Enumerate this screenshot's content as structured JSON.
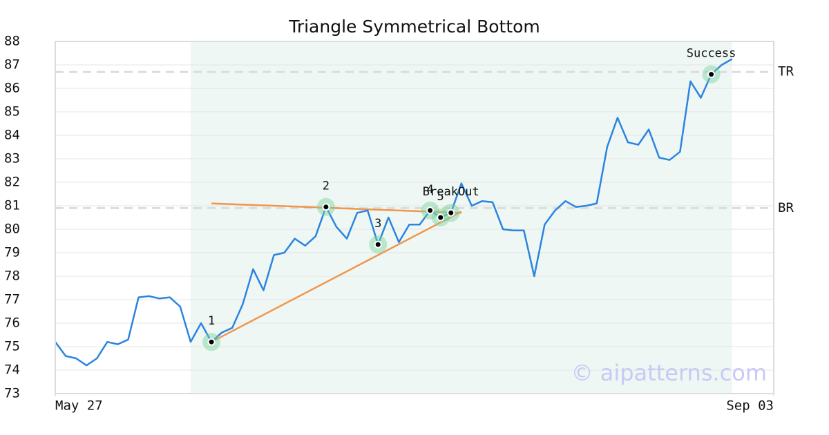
{
  "chart_data": {
    "type": "line",
    "title": "Triangle Symmetrical Bottom",
    "watermark": "© aipatterns.com",
    "x": [
      0,
      1,
      2,
      3,
      4,
      5,
      6,
      7,
      8,
      9,
      10,
      11,
      12,
      13,
      14,
      15,
      16,
      17,
      18,
      19,
      20,
      21,
      22,
      23,
      24,
      25,
      26,
      27,
      28,
      29,
      30,
      31,
      32,
      33,
      34,
      35,
      36,
      37,
      38,
      39,
      40,
      41,
      42,
      43,
      44,
      45,
      46,
      47,
      48,
      49,
      50,
      51,
      52,
      53,
      54,
      55,
      56,
      57,
      58,
      59,
      60,
      61,
      62,
      63,
      64,
      65
    ],
    "series": [
      {
        "color": "#2a84e0",
        "values": [
          75.2,
          74.6,
          74.5,
          74.2,
          74.5,
          75.2,
          75.1,
          75.3,
          77.1,
          77.15,
          77.05,
          77.1,
          76.7,
          75.2,
          76.0,
          75.2,
          75.6,
          75.8,
          76.8,
          78.3,
          77.4,
          78.9,
          79.0,
          79.6,
          79.3,
          79.7,
          80.95,
          80.1,
          79.6,
          80.7,
          80.8,
          79.35,
          80.5,
          79.45,
          80.2,
          80.2,
          80.8,
          80.5,
          80.7,
          81.95,
          81.0,
          81.2,
          81.15,
          80.0,
          79.95,
          79.95,
          78.0,
          80.2,
          80.8,
          81.2,
          80.95,
          81.0,
          81.1,
          83.5,
          84.75,
          83.7,
          83.6,
          84.25,
          83.05,
          82.95,
          83.3,
          86.3,
          85.6,
          86.6,
          87.0,
          87.25
        ]
      }
    ],
    "xlim": [
      0,
      69
    ],
    "xticks": [
      {
        "value": 0,
        "label": "May 27"
      },
      {
        "value": 69,
        "label": "Sep 03"
      }
    ],
    "ylim": [
      73,
      88
    ],
    "yticks": [
      73,
      74,
      75,
      76,
      77,
      78,
      79,
      80,
      81,
      82,
      83,
      84,
      85,
      86,
      87,
      88
    ],
    "grid": true,
    "shade": {
      "x": [
        13,
        65
      ],
      "color": "#eef7f3"
    },
    "hlines": [
      {
        "label": "TR",
        "value": 86.7
      },
      {
        "label": "BR",
        "value": 80.9
      }
    ],
    "trendlines": [
      {
        "x": [
          15,
          39
        ],
        "y": [
          81.1,
          80.7
        ],
        "color": "#f0954a"
      },
      {
        "x": [
          15,
          39
        ],
        "y": [
          75.2,
          80.75
        ],
        "color": "#f0954a"
      }
    ],
    "points": [
      {
        "label": "1",
        "x": 15,
        "y": 75.2
      },
      {
        "label": "2",
        "x": 26,
        "y": 80.95
      },
      {
        "label": "3",
        "x": 31,
        "y": 79.35
      },
      {
        "label": "4",
        "x": 36,
        "y": 80.8
      },
      {
        "label": "5",
        "x": 37,
        "y": 80.5
      },
      {
        "label": "BreakOut",
        "x": 38,
        "y": 80.7
      },
      {
        "label": "Success",
        "x": 63,
        "y": 86.6
      }
    ]
  }
}
